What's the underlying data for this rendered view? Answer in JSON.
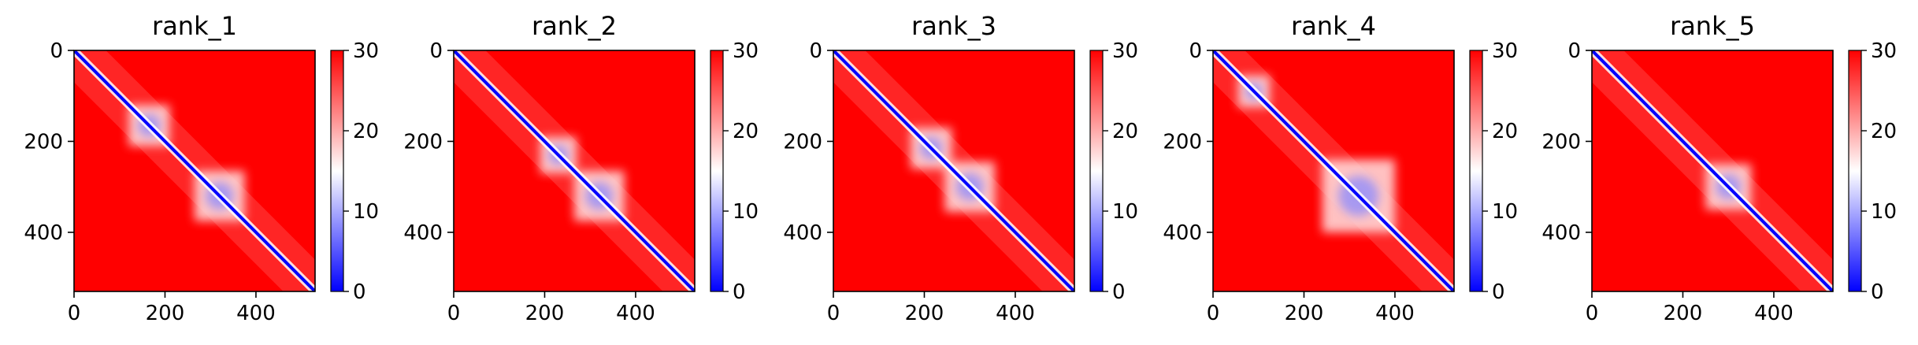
{
  "chart_data": [
    {
      "type": "heatmap",
      "title": "rank_1",
      "xticks": [
        0,
        200,
        400
      ],
      "yticks": [
        0,
        200,
        400
      ],
      "xlim": [
        0,
        530
      ],
      "ylim": [
        530,
        0
      ],
      "colorbar": {
        "ticks": [
          0,
          10,
          20,
          30
        ],
        "range": [
          0,
          30
        ],
        "cmap": [
          "#0000ff",
          "#ffffff",
          "#ff0000"
        ]
      },
      "blobs": [
        {
          "x": 165,
          "y": 165,
          "r": 45
        },
        {
          "x": 320,
          "y": 320,
          "r": 55
        }
      ]
    },
    {
      "type": "heatmap",
      "title": "rank_2",
      "xticks": [
        0,
        200,
        400
      ],
      "yticks": [
        0,
        200,
        400
      ],
      "xlim": [
        0,
        530
      ],
      "ylim": [
        530,
        0
      ],
      "colorbar": {
        "ticks": [
          0,
          10,
          20,
          30
        ],
        "range": [
          0,
          30
        ],
        "cmap": [
          "#0000ff",
          "#ffffff",
          "#ff0000"
        ]
      },
      "blobs": [
        {
          "x": 230,
          "y": 230,
          "r": 40
        },
        {
          "x": 320,
          "y": 320,
          "r": 55
        }
      ]
    },
    {
      "type": "heatmap",
      "title": "rank_3",
      "xticks": [
        0,
        200,
        400
      ],
      "yticks": [
        0,
        200,
        400
      ],
      "xlim": [
        0,
        530
      ],
      "ylim": [
        530,
        0
      ],
      "colorbar": {
        "ticks": [
          0,
          10,
          20,
          30
        ],
        "range": [
          0,
          30
        ],
        "cmap": [
          "#0000ff",
          "#ffffff",
          "#ff0000"
        ]
      },
      "blobs": [
        {
          "x": 215,
          "y": 215,
          "r": 45
        },
        {
          "x": 300,
          "y": 300,
          "r": 55
        }
      ]
    },
    {
      "type": "heatmap",
      "title": "rank_4",
      "xticks": [
        0,
        200,
        400
      ],
      "yticks": [
        0,
        200,
        400
      ],
      "xlim": [
        0,
        530
      ],
      "ylim": [
        530,
        0
      ],
      "colorbar": {
        "ticks": [
          0,
          10,
          20,
          30
        ],
        "range": [
          0,
          30
        ],
        "cmap": [
          "#0000ff",
          "#ffffff",
          "#ff0000"
        ]
      },
      "blobs": [
        {
          "x": 90,
          "y": 90,
          "r": 35
        },
        {
          "x": 320,
          "y": 320,
          "r": 80
        }
      ]
    },
    {
      "type": "heatmap",
      "title": "rank_5",
      "xticks": [
        0,
        200,
        400
      ],
      "yticks": [
        0,
        200,
        400
      ],
      "xlim": [
        0,
        530
      ],
      "ylim": [
        530,
        0
      ],
      "colorbar": {
        "ticks": [
          0,
          10,
          20,
          30
        ],
        "range": [
          0,
          30
        ],
        "cmap": [
          "#0000ff",
          "#ffffff",
          "#ff0000"
        ]
      },
      "blobs": [
        {
          "x": 300,
          "y": 300,
          "r": 50
        }
      ]
    }
  ],
  "colors": {
    "background": "#ff0000",
    "diagonal": "#0000ff",
    "mid": "#ffffff"
  }
}
